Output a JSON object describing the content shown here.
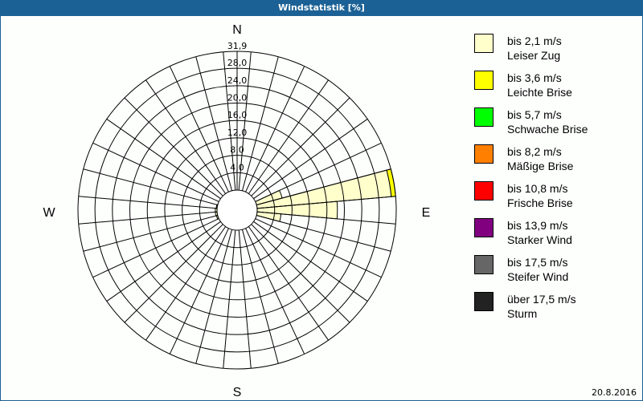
{
  "title": "Windstatistik [%]",
  "date": "20.8.2016",
  "chart_data": {
    "type": "polar-stacked-bar",
    "title": "Windstatistik [%]",
    "directions_labels": {
      "N": "N",
      "E": "E",
      "S": "S",
      "W": "W"
    },
    "radial_max": 31.9,
    "radial_ticks": [
      "4,0",
      "8,0",
      "12,0",
      "16,0",
      "20,0",
      "24,0",
      "28,0",
      "31,9"
    ],
    "radial_tick_values": [
      4,
      8,
      12,
      16,
      20,
      24,
      28,
      31.9
    ],
    "sector_width_deg": 10,
    "grid": true,
    "legend_position": "right",
    "classes": [
      {
        "range": "bis 2,1 m/s",
        "name": "Leiser Zug",
        "color": "#ffffcc"
      },
      {
        "range": "bis 3,6 m/s",
        "name": "Leichte Brise",
        "color": "#ffff00"
      },
      {
        "range": "bis 5,7 m/s",
        "name": "Schwache Brise",
        "color": "#00ff00"
      },
      {
        "range": "bis 8,2 m/s",
        "name": "Mäßige Brise",
        "color": "#ff8000"
      },
      {
        "range": "bis 10,8 m/s",
        "name": "Frische Brise",
        "color": "#ff0000"
      },
      {
        "range": "bis 13,9 m/s",
        "name": "Starker Wind",
        "color": "#800080"
      },
      {
        "range": "bis 17,5 m/s",
        "name": "Steifer Wind",
        "color": "#666666"
      },
      {
        "range": "über 17,5 m/s",
        "name": "Sturm",
        "color": "#222222"
      }
    ],
    "sectors": [
      {
        "direction": 70,
        "values": [
          6.1
        ]
      },
      {
        "direction": 80,
        "values": [
          30.9,
          1.0
        ]
      },
      {
        "direction": 90,
        "values": [
          18.4
        ]
      },
      {
        "direction": 100,
        "values": [
          5.5
        ]
      },
      {
        "direction": 250,
        "values": [
          0.3
        ]
      },
      {
        "direction": 260,
        "values": [
          0.4
        ]
      },
      {
        "direction": 270,
        "values": [
          0.4
        ]
      },
      {
        "direction": 280,
        "values": [
          0.2
        ]
      }
    ]
  }
}
